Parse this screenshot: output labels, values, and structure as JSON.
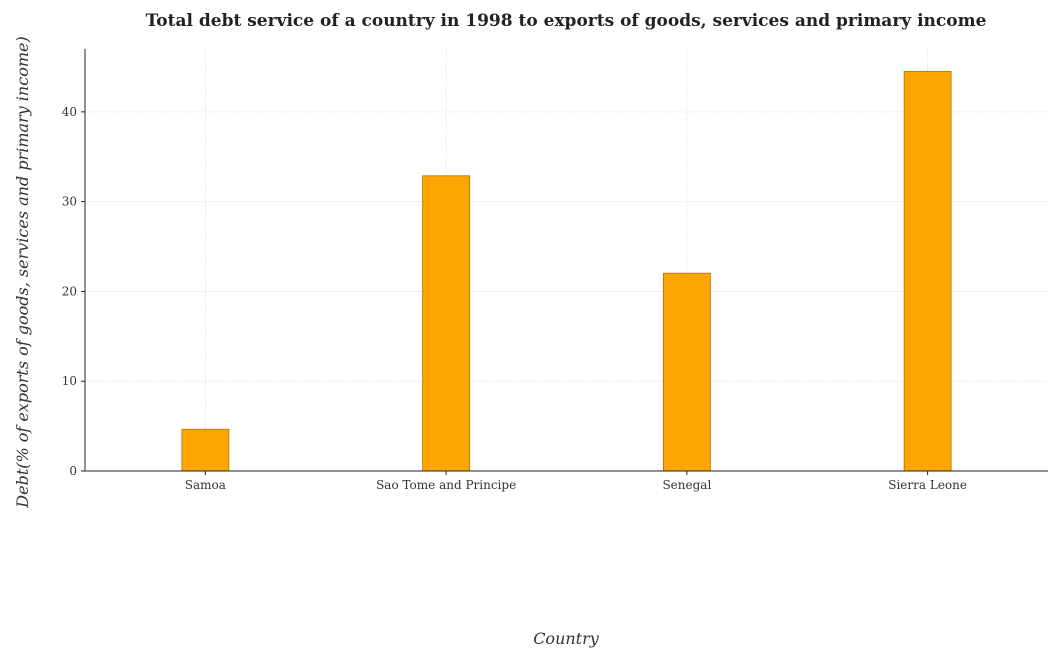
{
  "chart_data": {
    "type": "bar",
    "title": "Total debt service of a country in 1998 to exports of goods, services and primary income",
    "xlabel": "Country",
    "ylabel": "Debt(% of exports of goods, services and primary income)",
    "categories": [
      "Samoa",
      "Sao Tome and Principe",
      "Senegal",
      "Sierra Leone"
    ],
    "values": [
      4.65,
      32.88,
      22.03,
      44.5
    ],
    "ylim": [
      0,
      47
    ],
    "yticks": [
      0,
      10,
      20,
      30,
      40
    ],
    "grid": true,
    "colors": {
      "bar": "#ffa500",
      "bar_edge": "#b36f00"
    }
  }
}
